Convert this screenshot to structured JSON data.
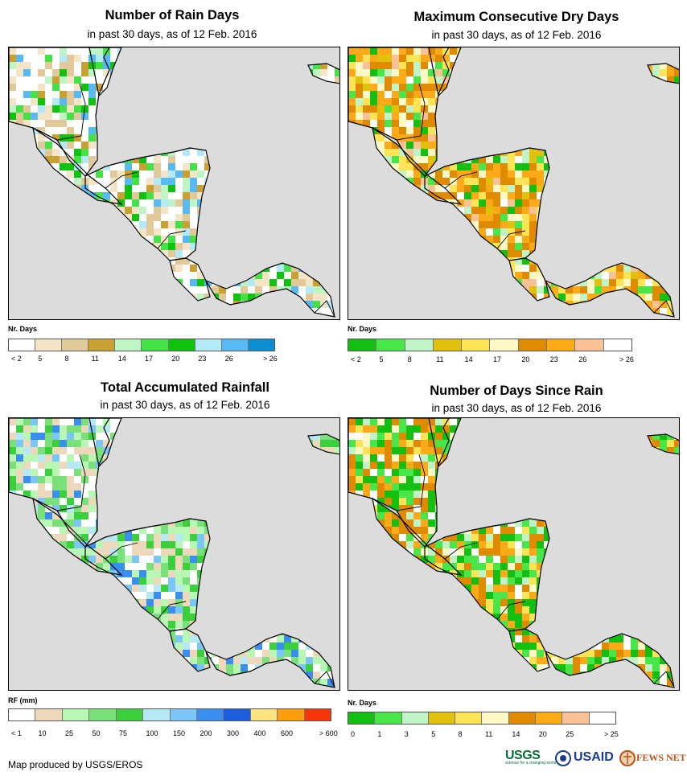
{
  "footer": {
    "credit": "Map produced by USGS/EROS"
  },
  "logos": {
    "usgs": "USGS",
    "usgs_tagline": "science for a changing world",
    "usaid": "USAID",
    "fewsnet": "FEWS NET"
  },
  "panels": [
    {
      "id": "rain-days",
      "title": "Number of Rain Days",
      "subtitle": "in past 30 days, as of 12 Feb. 2016",
      "legend": {
        "unit": "Nr. Days",
        "colors": [
          "#ffffff",
          "#f5e5c8",
          "#e1c99a",
          "#c9a033",
          "#bff5c4",
          "#44e246",
          "#0fc20e",
          "#b4e9f7",
          "#59b9f2",
          "#0d8ed0"
        ],
        "ticks": [
          "< 2",
          "5",
          "8",
          "11",
          "14",
          "17",
          "20",
          "23",
          "26",
          "> 26"
        ]
      }
    },
    {
      "id": "dry-days",
      "title": "Maximum Consecutive Dry Days",
      "subtitle": "in past 30 days, as of 12 Feb. 2016",
      "legend": {
        "unit": "Nr. Days",
        "colors": [
          "#13c012",
          "#48e648",
          "#c0f3c6",
          "#e1c10c",
          "#fde356",
          "#fff9c7",
          "#e08a00",
          "#fdaa19",
          "#f9c296",
          "#ffffff"
        ],
        "ticks": [
          "< 2",
          "5",
          "8",
          "11",
          "14",
          "17",
          "20",
          "23",
          "26",
          "> 26"
        ]
      }
    },
    {
      "id": "total-rainfall",
      "title": "Total Accumulated Rainfall",
      "subtitle": "in past 30 days, as of 12 Feb. 2016",
      "legend": {
        "unit": "RF (mm)",
        "colors": [
          "#ffffff",
          "#eed8bc",
          "#b8f7b4",
          "#7ae17a",
          "#3ccf3c",
          "#b7e8f6",
          "#7bc6f6",
          "#3a8ef0",
          "#1c5ede",
          "#fde380",
          "#fd9f0d",
          "#f5350a"
        ],
        "ticks": [
          "< 1",
          "10",
          "25",
          "50",
          "75",
          "100",
          "150",
          "200",
          "300",
          "400",
          "600",
          "> 600"
        ]
      }
    },
    {
      "id": "days-since-rain",
      "title": "Number of Days Since Rain",
      "subtitle": "in past 30 days, as of 12 Feb. 2016",
      "legend": {
        "unit": "Nr. Days",
        "colors": [
          "#13c012",
          "#48e648",
          "#c0f3c6",
          "#e1c10c",
          "#fde356",
          "#fff9c7",
          "#e08a00",
          "#fdaa19",
          "#f9c296",
          "#ffffff"
        ],
        "ticks": [
          "0",
          "1",
          "3",
          "5",
          "8",
          "11",
          "14",
          "20",
          "25",
          "> 25"
        ]
      }
    }
  ]
}
